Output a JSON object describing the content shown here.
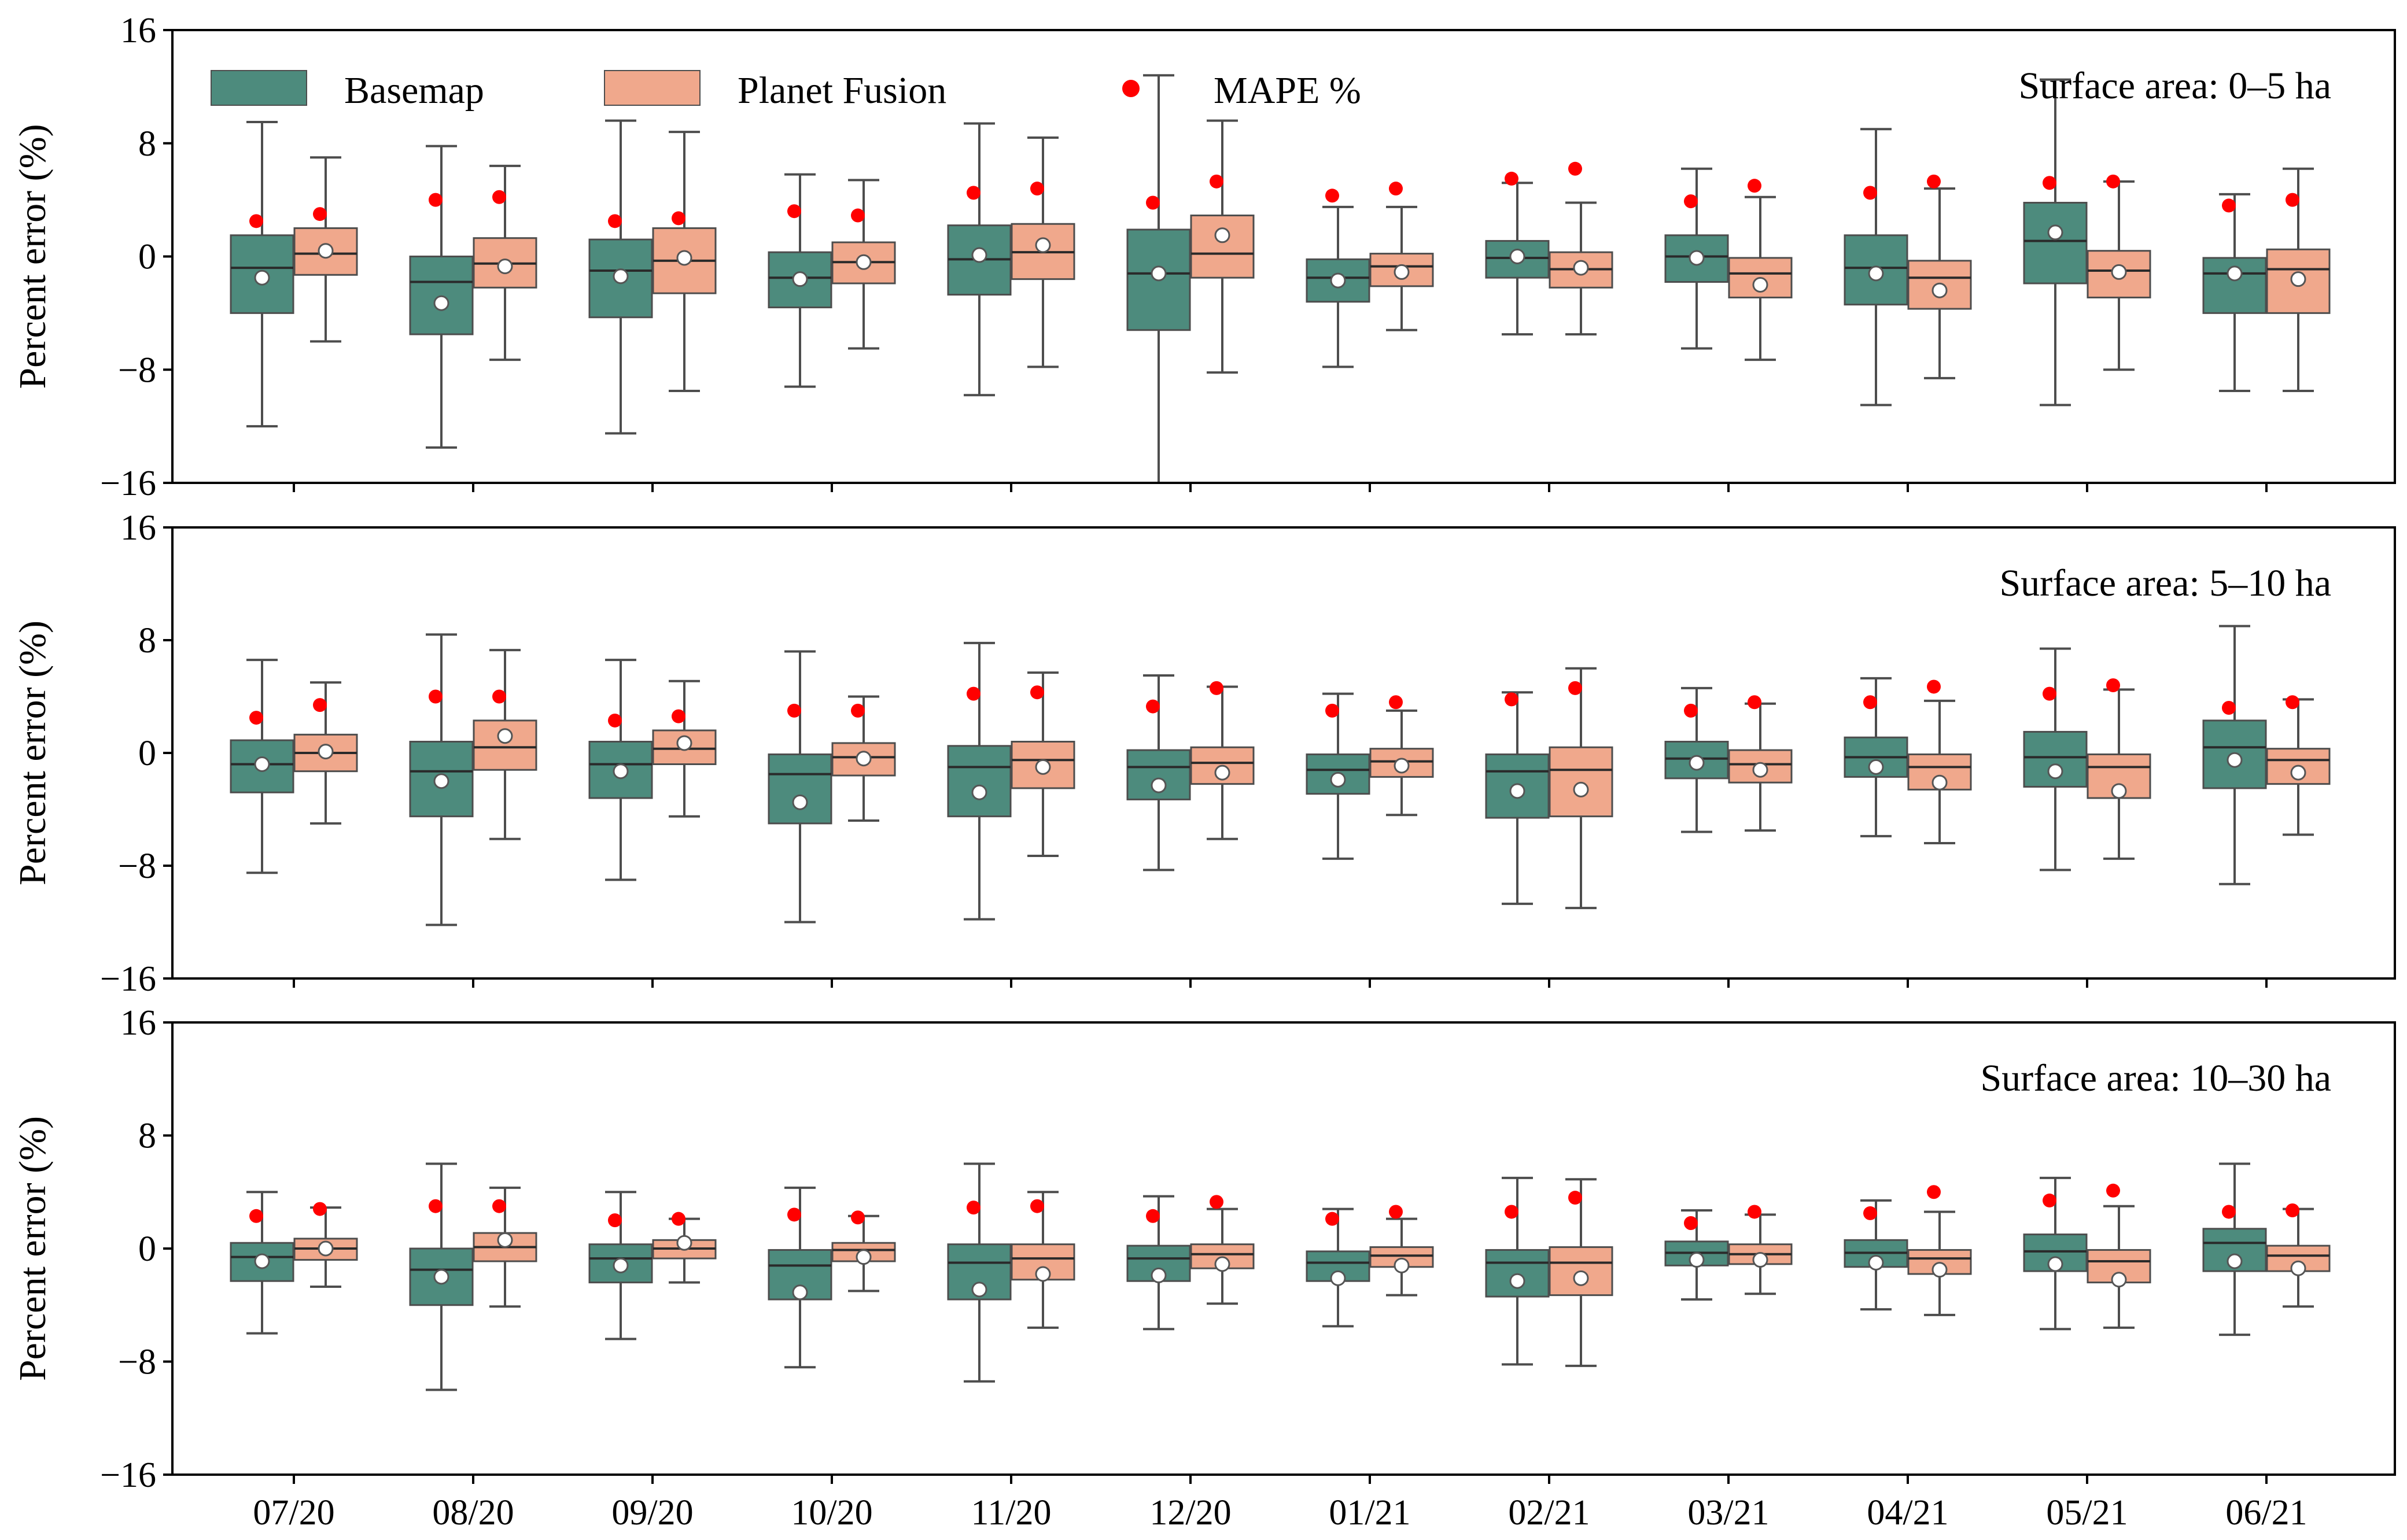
{
  "chart_data": {
    "type": "box",
    "categories": [
      "07/20",
      "08/20",
      "09/20",
      "10/20",
      "11/20",
      "12/20",
      "01/21",
      "02/21",
      "03/21",
      "04/21",
      "05/21",
      "06/21"
    ],
    "ylabel": "Percent error (%)",
    "ylim": [
      -16,
      16
    ],
    "yticks": [
      16,
      8,
      0,
      -8,
      -16
    ],
    "ytick_labels": [
      "16",
      "8",
      "0",
      "−8",
      "−16"
    ],
    "legend": {
      "placement": "top-left",
      "items": [
        {
          "name": "Basemap",
          "color": "#4d8b7d"
        },
        {
          "name": "Planet Fusion",
          "color": "#f0a88c"
        },
        {
          "name": "MAPE %",
          "color": "#ff0000"
        }
      ]
    },
    "colors": {
      "basemap": "#4d8b7d",
      "fusion": "#f0a88c",
      "mape": "#ff0000",
      "mean": "#ffffff"
    },
    "panels": [
      {
        "title": "Surface area: 0–5 ha",
        "series": [
          {
            "name": "Basemap",
            "boxes": [
              {
                "wlo": -12.0,
                "q1": -4.0,
                "med": -0.8,
                "q3": 1.5,
                "whi": 9.5,
                "mean": -1.5,
                "mape": 2.5
              },
              {
                "wlo": -13.5,
                "q1": -5.5,
                "med": -1.8,
                "q3": 0.0,
                "whi": 7.8,
                "mean": -3.3,
                "mape": 4.0
              },
              {
                "wlo": -12.5,
                "q1": -4.3,
                "med": -1.0,
                "q3": 1.2,
                "whi": 9.6,
                "mean": -1.4,
                "mape": 2.5
              },
              {
                "wlo": -9.2,
                "q1": -3.6,
                "med": -1.5,
                "q3": 0.3,
                "whi": 5.8,
                "mean": -1.6,
                "mape": 3.2
              },
              {
                "wlo": -9.8,
                "q1": -2.7,
                "med": -0.2,
                "q3": 2.2,
                "whi": 9.4,
                "mean": 0.1,
                "mape": 4.5
              },
              {
                "wlo": -16.0,
                "q1": -5.2,
                "med": -1.2,
                "q3": 1.9,
                "whi": 12.8,
                "mean": -1.2,
                "mape": 3.8
              },
              {
                "wlo": -7.8,
                "q1": -3.2,
                "med": -1.5,
                "q3": -0.2,
                "whi": 3.5,
                "mean": -1.7,
                "mape": 4.3
              },
              {
                "wlo": -5.5,
                "q1": -1.5,
                "med": -0.1,
                "q3": 1.1,
                "whi": 5.2,
                "mean": 0.0,
                "mape": 5.5
              },
              {
                "wlo": -6.5,
                "q1": -1.8,
                "med": 0.0,
                "q3": 1.5,
                "whi": 6.2,
                "mean": -0.1,
                "mape": 3.9
              },
              {
                "wlo": -10.5,
                "q1": -3.4,
                "med": -0.8,
                "q3": 1.5,
                "whi": 9.0,
                "mean": -1.2,
                "mape": 4.5
              },
              {
                "wlo": -10.5,
                "q1": -1.9,
                "med": 1.1,
                "q3": 3.8,
                "whi": 12.5,
                "mean": 1.7,
                "mape": 5.2
              },
              {
                "wlo": -9.5,
                "q1": -4.0,
                "med": -1.2,
                "q3": -0.1,
                "whi": 4.4,
                "mean": -1.2,
                "mape": 3.6
              }
            ]
          },
          {
            "name": "Planet Fusion",
            "boxes": [
              {
                "wlo": -6.0,
                "q1": -1.3,
                "med": 0.2,
                "q3": 2.0,
                "whi": 7.0,
                "mean": 0.4,
                "mape": 3.0
              },
              {
                "wlo": -7.3,
                "q1": -2.2,
                "med": -0.5,
                "q3": 1.3,
                "whi": 6.4,
                "mean": -0.7,
                "mape": 4.2
              },
              {
                "wlo": -9.5,
                "q1": -2.6,
                "med": -0.3,
                "q3": 2.0,
                "whi": 8.8,
                "mean": -0.1,
                "mape": 2.7
              },
              {
                "wlo": -6.5,
                "q1": -1.9,
                "med": -0.4,
                "q3": 1.0,
                "whi": 5.4,
                "mean": -0.4,
                "mape": 2.9
              },
              {
                "wlo": -7.8,
                "q1": -1.6,
                "med": 0.3,
                "q3": 2.3,
                "whi": 8.4,
                "mean": 0.8,
                "mape": 4.8
              },
              {
                "wlo": -8.2,
                "q1": -1.5,
                "med": 0.2,
                "q3": 2.9,
                "whi": 9.6,
                "mean": 1.5,
                "mape": 5.3
              },
              {
                "wlo": -5.2,
                "q1": -2.1,
                "med": -0.7,
                "q3": 0.2,
                "whi": 3.5,
                "mean": -1.1,
                "mape": 4.8
              },
              {
                "wlo": -5.5,
                "q1": -2.2,
                "med": -0.9,
                "q3": 0.3,
                "whi": 3.8,
                "mean": -0.8,
                "mape": 6.2
              },
              {
                "wlo": -7.3,
                "q1": -2.9,
                "med": -1.2,
                "q3": -0.1,
                "whi": 4.2,
                "mean": -2.0,
                "mape": 5.0
              },
              {
                "wlo": -8.6,
                "q1": -3.7,
                "med": -1.5,
                "q3": -0.3,
                "whi": 4.8,
                "mean": -2.4,
                "mape": 5.3
              },
              {
                "wlo": -8.0,
                "q1": -2.9,
                "med": -1.0,
                "q3": 0.4,
                "whi": 5.3,
                "mean": -1.1,
                "mape": 5.3
              },
              {
                "wlo": -9.5,
                "q1": -4.0,
                "med": -0.9,
                "q3": 0.5,
                "whi": 6.2,
                "mean": -1.6,
                "mape": 4.0
              }
            ]
          }
        ]
      },
      {
        "title": "Surface area: 5–10 ha",
        "series": [
          {
            "name": "Basemap",
            "boxes": [
              {
                "wlo": -8.5,
                "q1": -2.8,
                "med": -0.8,
                "q3": 0.9,
                "whi": 6.6,
                "mean": -0.8,
                "mape": 2.5
              },
              {
                "wlo": -12.2,
                "q1": -4.5,
                "med": -1.3,
                "q3": 0.8,
                "whi": 8.4,
                "mean": -2.0,
                "mape": 4.0
              },
              {
                "wlo": -9.0,
                "q1": -3.2,
                "med": -0.8,
                "q3": 0.8,
                "whi": 6.6,
                "mean": -1.3,
                "mape": 2.3
              },
              {
                "wlo": -12.0,
                "q1": -5.0,
                "med": -1.5,
                "q3": -0.1,
                "whi": 7.2,
                "mean": -3.5,
                "mape": 3.0
              },
              {
                "wlo": -11.8,
                "q1": -4.5,
                "med": -1.0,
                "q3": 0.5,
                "whi": 7.8,
                "mean": -2.8,
                "mape": 4.2
              },
              {
                "wlo": -8.3,
                "q1": -3.3,
                "med": -1.0,
                "q3": 0.2,
                "whi": 5.5,
                "mean": -2.3,
                "mape": 3.3
              },
              {
                "wlo": -7.5,
                "q1": -2.9,
                "med": -1.2,
                "q3": -0.1,
                "whi": 4.2,
                "mean": -1.9,
                "mape": 3.0
              },
              {
                "wlo": -10.7,
                "q1": -4.6,
                "med": -1.3,
                "q3": -0.1,
                "whi": 4.3,
                "mean": -2.7,
                "mape": 3.8
              },
              {
                "wlo": -5.6,
                "q1": -1.8,
                "med": -0.4,
                "q3": 0.8,
                "whi": 4.6,
                "mean": -0.7,
                "mape": 3.0
              },
              {
                "wlo": -5.9,
                "q1": -1.7,
                "med": -0.3,
                "q3": 1.1,
                "whi": 5.3,
                "mean": -1.0,
                "mape": 3.6
              },
              {
                "wlo": -8.3,
                "q1": -2.4,
                "med": -0.3,
                "q3": 1.5,
                "whi": 7.4,
                "mean": -1.3,
                "mape": 4.2
              },
              {
                "wlo": -9.3,
                "q1": -2.5,
                "med": 0.4,
                "q3": 2.3,
                "whi": 9.0,
                "mean": -0.5,
                "mape": 3.2
              }
            ]
          },
          {
            "name": "Planet Fusion",
            "boxes": [
              {
                "wlo": -5.0,
                "q1": -1.3,
                "med": 0.0,
                "q3": 1.3,
                "whi": 5.0,
                "mean": 0.1,
                "mape": 3.4
              },
              {
                "wlo": -6.1,
                "q1": -1.2,
                "med": 0.4,
                "q3": 2.3,
                "whi": 7.3,
                "mean": 1.2,
                "mape": 4.0
              },
              {
                "wlo": -4.5,
                "q1": -0.8,
                "med": 0.3,
                "q3": 1.6,
                "whi": 5.1,
                "mean": 0.7,
                "mape": 2.6
              },
              {
                "wlo": -4.8,
                "q1": -1.6,
                "med": -0.3,
                "q3": 0.7,
                "whi": 4.0,
                "mean": -0.4,
                "mape": 3.0
              },
              {
                "wlo": -7.3,
                "q1": -2.5,
                "med": -0.5,
                "q3": 0.8,
                "whi": 5.7,
                "mean": -1.0,
                "mape": 4.3
              },
              {
                "wlo": -6.1,
                "q1": -2.2,
                "med": -0.7,
                "q3": 0.4,
                "whi": 4.7,
                "mean": -1.4,
                "mape": 4.6
              },
              {
                "wlo": -4.4,
                "q1": -1.7,
                "med": -0.6,
                "q3": 0.3,
                "whi": 3.0,
                "mean": -0.9,
                "mape": 3.6
              },
              {
                "wlo": -11.0,
                "q1": -4.5,
                "med": -1.2,
                "q3": 0.4,
                "whi": 6.0,
                "mean": -2.6,
                "mape": 4.6
              },
              {
                "wlo": -5.5,
                "q1": -2.1,
                "med": -0.8,
                "q3": 0.2,
                "whi": 3.5,
                "mean": -1.2,
                "mape": 3.6
              },
              {
                "wlo": -6.4,
                "q1": -2.6,
                "med": -1.0,
                "q3": -0.1,
                "whi": 3.7,
                "mean": -2.1,
                "mape": 4.7
              },
              {
                "wlo": -7.5,
                "q1": -3.2,
                "med": -1.0,
                "q3": -0.1,
                "whi": 4.5,
                "mean": -2.7,
                "mape": 4.8
              },
              {
                "wlo": -5.8,
                "q1": -2.2,
                "med": -0.5,
                "q3": 0.3,
                "whi": 3.8,
                "mean": -1.4,
                "mape": 3.6
              }
            ]
          }
        ]
      },
      {
        "title": "Surface area: 10–30 ha",
        "series": [
          {
            "name": "Basemap",
            "boxes": [
              {
                "wlo": -6.0,
                "q1": -2.3,
                "med": -0.6,
                "q3": 0.4,
                "whi": 4.0,
                "mean": -0.9,
                "mape": 2.3
              },
              {
                "wlo": -10.0,
                "q1": -4.0,
                "med": -1.5,
                "q3": 0.0,
                "whi": 6.0,
                "mean": -2.0,
                "mape": 3.0
              },
              {
                "wlo": -6.4,
                "q1": -2.4,
                "med": -0.7,
                "q3": 0.3,
                "whi": 4.0,
                "mean": -1.2,
                "mape": 2.0
              },
              {
                "wlo": -8.4,
                "q1": -3.6,
                "med": -1.2,
                "q3": -0.1,
                "whi": 4.3,
                "mean": -3.1,
                "mape": 2.4
              },
              {
                "wlo": -9.4,
                "q1": -3.6,
                "med": -1.0,
                "q3": 0.3,
                "whi": 6.0,
                "mean": -2.9,
                "mape": 2.9
              },
              {
                "wlo": -5.7,
                "q1": -2.3,
                "med": -0.7,
                "q3": 0.2,
                "whi": 3.7,
                "mean": -1.9,
                "mape": 2.3
              },
              {
                "wlo": -5.5,
                "q1": -2.3,
                "med": -1.0,
                "q3": -0.2,
                "whi": 2.8,
                "mean": -2.1,
                "mape": 2.1
              },
              {
                "wlo": -8.2,
                "q1": -3.4,
                "med": -1.0,
                "q3": -0.1,
                "whi": 5.0,
                "mean": -2.3,
                "mape": 2.6
              },
              {
                "wlo": -3.6,
                "q1": -1.2,
                "med": -0.3,
                "q3": 0.5,
                "whi": 2.7,
                "mean": -0.8,
                "mape": 1.8
              },
              {
                "wlo": -4.3,
                "q1": -1.3,
                "med": -0.3,
                "q3": 0.6,
                "whi": 3.4,
                "mean": -1.0,
                "mape": 2.5
              },
              {
                "wlo": -5.7,
                "q1": -1.6,
                "med": -0.2,
                "q3": 1.0,
                "whi": 5.0,
                "mean": -1.1,
                "mape": 3.4
              },
              {
                "wlo": -6.1,
                "q1": -1.6,
                "med": 0.4,
                "q3": 1.4,
                "whi": 6.0,
                "mean": -0.9,
                "mape": 2.6
              }
            ]
          },
          {
            "name": "Planet Fusion",
            "boxes": [
              {
                "wlo": -2.7,
                "q1": -0.8,
                "med": 0.0,
                "q3": 0.7,
                "whi": 2.9,
                "mean": 0.0,
                "mape": 2.8
              },
              {
                "wlo": -4.1,
                "q1": -0.9,
                "med": 0.1,
                "q3": 1.1,
                "whi": 4.3,
                "mean": 0.6,
                "mape": 3.0
              },
              {
                "wlo": -2.4,
                "q1": -0.7,
                "med": 0.0,
                "q3": 0.6,
                "whi": 2.1,
                "mean": 0.4,
                "mape": 2.1
              },
              {
                "wlo": -3.0,
                "q1": -0.9,
                "med": -0.1,
                "q3": 0.4,
                "whi": 2.3,
                "mean": -0.6,
                "mape": 2.2
              },
              {
                "wlo": -5.6,
                "q1": -2.2,
                "med": -0.7,
                "q3": 0.3,
                "whi": 4.0,
                "mean": -1.8,
                "mape": 3.0
              },
              {
                "wlo": -3.9,
                "q1": -1.4,
                "med": -0.4,
                "q3": 0.3,
                "whi": 2.8,
                "mean": -1.1,
                "mape": 3.3
              },
              {
                "wlo": -3.3,
                "q1": -1.3,
                "med": -0.5,
                "q3": 0.1,
                "whi": 2.1,
                "mean": -1.2,
                "mape": 2.6
              },
              {
                "wlo": -8.3,
                "q1": -3.3,
                "med": -1.0,
                "q3": 0.1,
                "whi": 4.9,
                "mean": -2.1,
                "mape": 3.6
              },
              {
                "wlo": -3.2,
                "q1": -1.1,
                "med": -0.4,
                "q3": 0.3,
                "whi": 2.4,
                "mean": -0.8,
                "mape": 2.6
              },
              {
                "wlo": -4.7,
                "q1": -1.8,
                "med": -0.7,
                "q3": -0.1,
                "whi": 2.6,
                "mean": -1.5,
                "mape": 4.0
              },
              {
                "wlo": -5.6,
                "q1": -2.4,
                "med": -0.9,
                "q3": -0.1,
                "whi": 3.0,
                "mean": -2.2,
                "mape": 4.1
              },
              {
                "wlo": -4.1,
                "q1": -1.6,
                "med": -0.5,
                "q3": 0.2,
                "whi": 2.8,
                "mean": -1.4,
                "mape": 2.7
              }
            ]
          }
        ]
      }
    ]
  }
}
